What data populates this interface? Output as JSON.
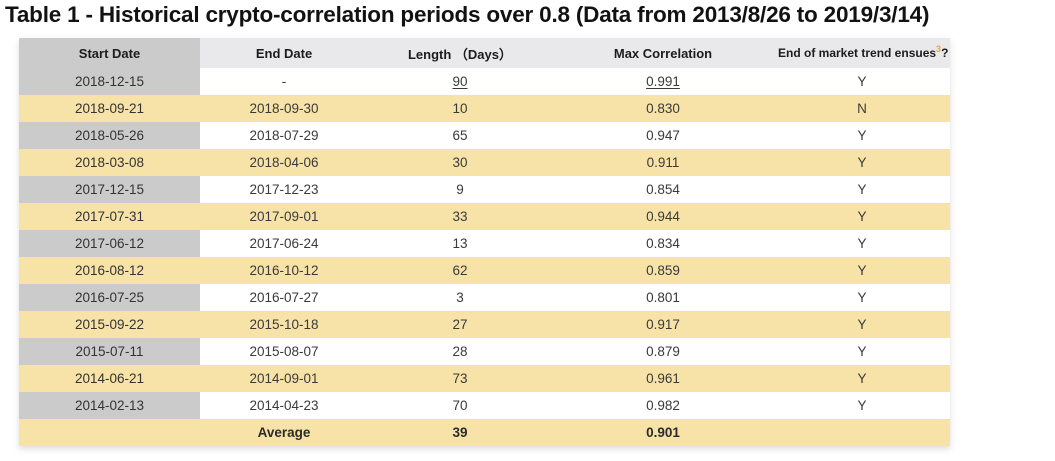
{
  "title": "Table 1 - Historical crypto-correlation periods over 0.8 (Data from 2013/8/26 to 2019/3/14)",
  "table": {
    "columns": {
      "start": "Start Date",
      "end": "End Date",
      "length": "Length （Days）",
      "corr": "Max Correlation",
      "trend": "End of market trend ensues",
      "trend_footnote_marker": "3",
      "trend_suffix": "?"
    },
    "rows": [
      {
        "start": "2018-12-15",
        "end": "-",
        "length": "90",
        "corr": "0.991",
        "trend": "Y"
      },
      {
        "start": "2018-09-21",
        "end": "2018-09-30",
        "length": "10",
        "corr": "0.830",
        "trend": "N"
      },
      {
        "start": "2018-05-26",
        "end": "2018-07-29",
        "length": "65",
        "corr": "0.947",
        "trend": "Y"
      },
      {
        "start": "2018-03-08",
        "end": "2018-04-06",
        "length": "30",
        "corr": "0.911",
        "trend": "Y"
      },
      {
        "start": "2017-12-15",
        "end": "2017-12-23",
        "length": "9",
        "corr": "0.854",
        "trend": "Y"
      },
      {
        "start": "2017-07-31",
        "end": "2017-09-01",
        "length": "33",
        "corr": "0.944",
        "trend": "Y"
      },
      {
        "start": "2017-06-12",
        "end": "2017-06-24",
        "length": "13",
        "corr": "0.834",
        "trend": "Y"
      },
      {
        "start": "2016-08-12",
        "end": "2016-10-12",
        "length": "62",
        "corr": "0.859",
        "trend": "Y"
      },
      {
        "start": "2016-07-25",
        "end": "2016-07-27",
        "length": "3",
        "corr": "0.801",
        "trend": "Y"
      },
      {
        "start": "2015-09-22",
        "end": "2015-10-18",
        "length": "27",
        "corr": "0.917",
        "trend": "Y"
      },
      {
        "start": "2015-07-11",
        "end": "2015-08-07",
        "length": "28",
        "corr": "0.879",
        "trend": "Y"
      },
      {
        "start": "2014-06-21",
        "end": "2014-09-01",
        "length": "73",
        "corr": "0.961",
        "trend": "Y"
      },
      {
        "start": "2014-02-13",
        "end": "2014-04-23",
        "length": "70",
        "corr": "0.982",
        "trend": "Y"
      }
    ],
    "average": {
      "start": "",
      "label": "Average",
      "length": "39",
      "corr": "0.901",
      "trend": ""
    }
  },
  "colors": {
    "stripe_yellow": "#f7e3a8",
    "first_column_gray": "#cbcbcb",
    "header_gray": "#e9e9ec",
    "footnote_gold": "#e9a63a",
    "title_text": "#121212",
    "body_text": "#3a3a3a"
  }
}
